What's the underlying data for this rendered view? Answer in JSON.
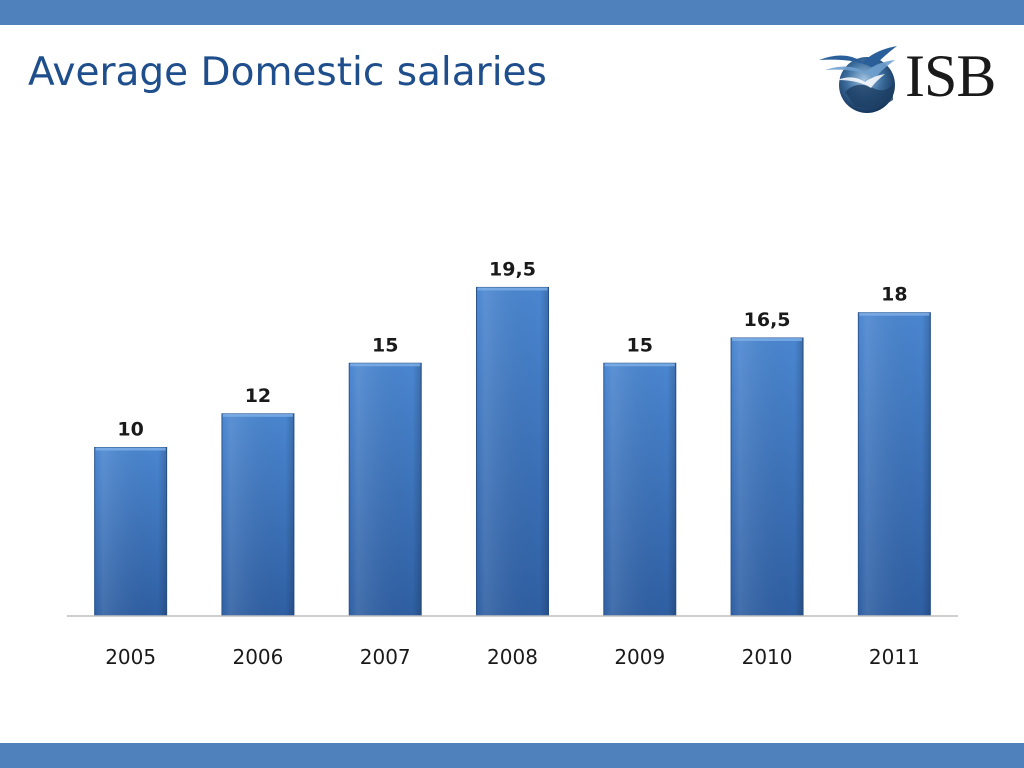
{
  "slide": {
    "title": "Average Domestic salaries",
    "bar_color": "#4a7dbd"
  },
  "logo": {
    "text": "ISB",
    "icon": "bird-globe-icon"
  },
  "chart_data": {
    "type": "bar",
    "categories": [
      "2005",
      "2006",
      "2007",
      "2008",
      "2009",
      "2010",
      "2011"
    ],
    "values": [
      10,
      12,
      15,
      19.5,
      15,
      16.5,
      18
    ],
    "data_labels": [
      "10",
      "12",
      "15",
      "19,5",
      "15",
      "16,5",
      "18"
    ],
    "xlabel": "",
    "ylabel": "",
    "ylim": [
      0,
      20
    ],
    "grid": false,
    "legend": "none",
    "bar_color": "#3a6fc0"
  }
}
